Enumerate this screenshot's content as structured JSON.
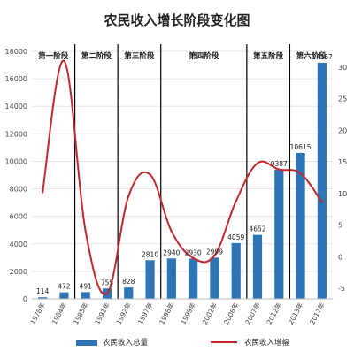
{
  "chart_data": {
    "type": "bar",
    "title": "农民收入增长阶段变化图",
    "categories": [
      "1978年",
      "1984年",
      "1985年",
      "1991年",
      "1992年",
      "1997年",
      "1998年",
      "1999年",
      "2002年",
      "2006年",
      "2007年",
      "2012年",
      "2013年",
      "2017年"
    ],
    "series": [
      {
        "name": "农民收入总量",
        "type": "bar",
        "axis": "left",
        "color": "#2e75b6",
        "values": [
          114,
          472,
          491,
          755,
          828,
          2810,
          2940,
          2930,
          2999,
          4059,
          4652,
          9387,
          10615,
          17167
        ]
      },
      {
        "name": "农民收入增幅",
        "type": "line",
        "axis": "right",
        "color": "#c0282d",
        "values": [
          10.2,
          31.0,
          4.0,
          -5.8,
          9.6,
          13.0,
          4.0,
          -0.2,
          0.2,
          8.8,
          14.8,
          13.8,
          13.2,
          8.6
        ]
      }
    ],
    "y_left": {
      "ylim": [
        0,
        18000
      ],
      "ticks": [
        0,
        2000,
        4000,
        6000,
        8000,
        10000,
        12000,
        14000,
        16000,
        18000
      ]
    },
    "y_right": {
      "ylim": [
        -5,
        30
      ],
      "ticks": [
        -5,
        0,
        5,
        10,
        15,
        20,
        25,
        30
      ]
    },
    "phases": [
      {
        "label": "第一阶段",
        "start": 0,
        "end": 1
      },
      {
        "label": "第二阶段",
        "start": 2,
        "end": 3
      },
      {
        "label": "第三阶段",
        "start": 4,
        "end": 5
      },
      {
        "label": "第四阶段",
        "start": 6,
        "end": 9
      },
      {
        "label": "第五阶段",
        "start": 10,
        "end": 11
      },
      {
        "label": "第六阶段",
        "start": 12,
        "end": 13
      }
    ],
    "legend": {
      "position": "bottom"
    }
  }
}
